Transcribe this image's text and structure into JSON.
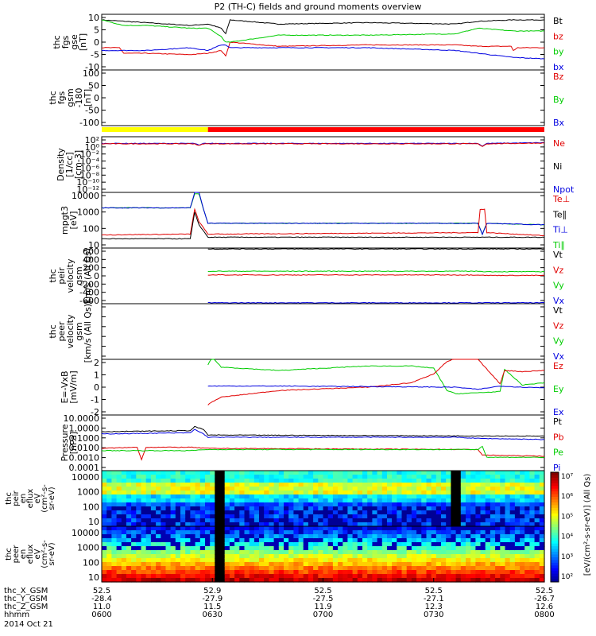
{
  "title": "P2 (TH-C) fields and ground moments overview",
  "chart_data": {
    "type": "line",
    "panels": [
      {
        "id": "fgs",
        "ylabel": [
          "thc",
          "fgs",
          "gse",
          "[nT]"
        ],
        "ticks": [
          "10",
          "5",
          "0",
          "-5",
          "-10"
        ],
        "ylim": [
          -10,
          10
        ],
        "legend": [
          {
            "name": "Bt",
            "color": "#000000"
          },
          {
            "name": "bz",
            "color": "#e00000"
          },
          {
            "name": "by",
            "color": "#00cc00"
          },
          {
            "name": "bx",
            "color": "#0000e0"
          }
        ],
        "series": [
          {
            "color": "#000000",
            "x": [
              0,
              10,
              20,
              24,
              27,
              28,
              29,
              40,
              60,
              80,
              85,
              93,
              100
            ],
            "y": [
              8,
              7,
              6,
              6.5,
              5,
              3,
              8,
              6.5,
              7,
              6.5,
              7.5,
              8,
              8
            ]
          },
          {
            "color": "#e00000",
            "x": [
              0,
              4,
              5,
              10,
              20,
              24,
              27,
              28,
              29,
              40,
              60,
              80,
              85,
              92.5,
              93,
              94,
              100
            ],
            "y": [
              -2,
              -2,
              -4,
              -4,
              -4.5,
              -4,
              -3,
              -5,
              0,
              -1.5,
              -1,
              -1,
              -1.5,
              -1.5,
              -3,
              -2,
              -2
            ]
          },
          {
            "color": "#00cc00",
            "x": [
              0,
              5,
              10,
              20,
              24,
              27,
              28,
              29,
              40,
              60,
              80,
              85,
              93,
              100
            ],
            "y": [
              8,
              6,
              6,
              5,
              5,
              2,
              0,
              0,
              2.5,
              2.5,
              3,
              5,
              4,
              4
            ]
          },
          {
            "color": "#0000e0",
            "x": [
              0,
              10,
              20,
              24,
              27,
              28,
              29,
              40,
              60,
              80,
              85,
              93,
              100
            ],
            "y": [
              -3,
              -3,
              -2,
              -3,
              -1,
              -1,
              -2,
              -2,
              -2,
              -3,
              -4,
              -5.5,
              -6
            ]
          }
        ]
      },
      {
        "id": "fgs2",
        "ylabel": [
          "thc",
          "fgs",
          "gsm",
          "-180",
          "[nT]"
        ],
        "ticks": [
          "100",
          "50",
          "0",
          "-50",
          "-100"
        ],
        "ylim": [
          -120,
          120
        ],
        "legend": [
          {
            "name": "Bz",
            "color": "#e00000"
          },
          {
            "name": "By",
            "color": "#00cc00"
          },
          {
            "name": "Bx",
            "color": "#0000e0"
          }
        ],
        "series": []
      },
      {
        "id": "density",
        "ylabel": [
          "Density",
          "[1/cc]",
          "[cm-3]"
        ],
        "ticks": [
          "10²",
          "10⁰",
          "10⁻²",
          "10⁻⁴",
          "10⁻⁶",
          "10⁻⁸",
          "10⁻¹⁰",
          "10⁻¹²"
        ],
        "ylim": [
          -13,
          2
        ],
        "legend": [
          {
            "name": "Ne",
            "color": "#e00000"
          },
          {
            "name": "Ni",
            "color": "#000000"
          },
          {
            "name": "Npot",
            "color": "#0000e0"
          }
        ],
        "series": [
          {
            "color": "#0000e0",
            "x": [
              0,
              21,
              22,
              23,
              85,
              86,
              87,
              100
            ],
            "y": [
              0.2,
              0.2,
              -0.3,
              0.2,
              0.2,
              -0.5,
              0.2,
              0.4
            ]
          },
          {
            "color": "#e00000",
            "x": [
              0,
              21,
              22,
              23,
              85,
              86,
              87,
              100
            ],
            "y": [
              0.1,
              0.1,
              -0.4,
              0.1,
              0.1,
              -0.6,
              0.1,
              0.3
            ]
          }
        ]
      },
      {
        "id": "temp",
        "ylabel": [
          "mpgt3",
          "[eV]"
        ],
        "ticks": [
          "10000",
          "1000",
          "100",
          "10"
        ],
        "ylim": [
          0.5,
          4.1
        ],
        "legend": [
          {
            "name": "Te⊥",
            "color": "#e00000"
          },
          {
            "name": "Te∥",
            "color": "#000000"
          },
          {
            "name": "Ti⊥",
            "color": "#0000e0"
          },
          {
            "name": "Ti∥",
            "color": "#00cc00"
          }
        ],
        "series": [
          {
            "color": "#00cc00",
            "x": [
              0,
              20,
              21,
              22,
              23,
              24,
              80,
              85,
              86,
              87,
              100
            ],
            "y": [
              3.1,
              3.1,
              4,
              4,
              3,
              2.1,
              2.1,
              2.1,
              1.4,
              2.1,
              2
            ]
          },
          {
            "color": "#0000e0",
            "x": [
              0,
              20,
              21,
              22,
              23,
              24,
              80,
              85,
              86,
              87,
              100
            ],
            "y": [
              3.1,
              3.1,
              4.1,
              4.1,
              3,
              2.1,
              2.1,
              2.1,
              1.4,
              2.1,
              2
            ]
          },
          {
            "color": "#e00000",
            "x": [
              0,
              20,
              21,
              22,
              24,
              85,
              85.5,
              86.5,
              87,
              100
            ],
            "y": [
              1.35,
              1.4,
              3,
              2.2,
              1.4,
              1.5,
              3,
              3,
              1.5,
              1.3
            ]
          },
          {
            "color": "#000000",
            "x": [
              0,
              20,
              21,
              22,
              24,
              100
            ],
            "y": [
              1.1,
              1.1,
              2.8,
              2,
              1.2,
              1.2
            ]
          }
        ]
      },
      {
        "id": "pvel",
        "ylabel": [
          "thc",
          "peir",
          "velocity",
          "gsm",
          "km/s (All Qs)"
        ],
        "ticks": [
          "600",
          "400",
          "200",
          "0",
          "-200",
          "-400",
          "-600"
        ],
        "ylim": [
          -600,
          600
        ],
        "legend": [
          {
            "name": "Vt",
            "color": "#000000"
          },
          {
            "name": "Vz",
            "color": "#e00000"
          },
          {
            "name": "Vy",
            "color": "#00cc00"
          },
          {
            "name": "Vx",
            "color": "#0000e0"
          }
        ],
        "series": [
          {
            "color": "#000000",
            "x": [
              24,
              100
            ],
            "y": [
              580,
              580
            ]
          },
          {
            "color": "#00cc00",
            "x": [
              24,
              85,
              87,
              100
            ],
            "y": [
              100,
              100,
              90,
              90
            ]
          },
          {
            "color": "#e00000",
            "x": [
              24,
              85,
              87,
              100
            ],
            "y": [
              20,
              20,
              10,
              10
            ]
          },
          {
            "color": "#0000e0",
            "x": [
              24,
              100
            ],
            "y": [
              -580,
              -580
            ]
          }
        ]
      },
      {
        "id": "evel",
        "ylabel": [
          "thc",
          "peer",
          "velocity",
          "gsm",
          "[km/s (All Qs)]"
        ],
        "ticks": [
          "",
          "",
          "",
          "",
          "",
          ""
        ],
        "ylim": [
          0,
          1
        ],
        "legend": [
          {
            "name": "Vt",
            "color": "#000000"
          },
          {
            "name": "Vz",
            "color": "#e00000"
          },
          {
            "name": "Vy",
            "color": "#00cc00"
          },
          {
            "name": "Vx",
            "color": "#0000e0"
          }
        ],
        "series": []
      },
      {
        "id": "efield",
        "ylabel": [
          "E=-VxB",
          "[mV/m]"
        ],
        "ticks": [
          "2",
          "1",
          "0",
          "-1",
          "-2"
        ],
        "ylim": [
          -2.5,
          2.5
        ],
        "legend": [
          {
            "name": "Ez",
            "color": "#e00000"
          },
          {
            "name": "Ey",
            "color": "#00cc00"
          },
          {
            "name": "Ex",
            "color": "#0000e0"
          }
        ],
        "series": [
          {
            "color": "#00cc00",
            "x": [
              24,
              25,
              27,
              40,
              60,
              70,
              75,
              78,
              80,
              85,
              90,
              91,
              95,
              100
            ],
            "y": [
              2,
              2.7,
              1.8,
              1.5,
              1.9,
              1.9,
              1.7,
              -0.3,
              -0.6,
              -0.5,
              -0.4,
              1.6,
              0.2,
              0.4
            ]
          },
          {
            "color": "#e00000",
            "x": [
              24,
              25,
              27,
              40,
              60,
              70,
              75,
              78,
              80,
              85,
              90,
              91,
              95,
              100
            ],
            "y": [
              -1.6,
              -1.3,
              -0.9,
              -0.3,
              0,
              0.4,
              1.2,
              2.3,
              2.6,
              2.5,
              0.3,
              1.5,
              1.4,
              1.5
            ]
          },
          {
            "color": "#0000e0",
            "x": [
              24,
              40,
              60,
              80,
              85,
              90,
              95,
              100
            ],
            "y": [
              0.1,
              0.1,
              0.05,
              0,
              -0.2,
              0.1,
              0,
              -0.05
            ]
          }
        ]
      },
      {
        "id": "pressure",
        "ylabel": [
          "Pressure",
          "[nPa]"
        ],
        "ticks": [
          "10.0000",
          "1.0000",
          "0.1000",
          "0.0100",
          "0.0010",
          "0.0001"
        ],
        "ylim": [
          -4,
          1
        ],
        "legend": [
          {
            "name": "Pt",
            "color": "#000000"
          },
          {
            "name": "Pb",
            "color": "#e00000"
          },
          {
            "name": "Pe",
            "color": "#00cc00"
          },
          {
            "name": "Pi",
            "color": "#0000e0"
          }
        ],
        "series": [
          {
            "color": "#000000",
            "x": [
              0,
              20,
              21,
              23,
              24,
              100
            ],
            "y": [
              -0.5,
              -0.4,
              -0.05,
              -0.3,
              -0.8,
              -0.9
            ]
          },
          {
            "color": "#0000e0",
            "x": [
              0,
              20,
              21,
              23,
              24,
              80,
              85,
              100
            ],
            "y": [
              -0.7,
              -0.6,
              -0.3,
              -0.7,
              -1,
              -1,
              -1.1,
              -1.2
            ]
          },
          {
            "color": "#e00000",
            "x": [
              0,
              8,
              9,
              10,
              20,
              24,
              85,
              86,
              100
            ],
            "y": [
              -2,
              -1.9,
              -3,
              -1.9,
              -1.9,
              -2.0,
              -2.1,
              -2.6,
              -2.7
            ]
          },
          {
            "color": "#00cc00",
            "x": [
              0,
              20,
              24,
              60,
              85,
              86,
              87,
              100
            ],
            "y": [
              -2.2,
              -2.2,
              -2.1,
              -2.1,
              -2.1,
              -1.8,
              -2.8,
              -2.8
            ]
          }
        ]
      }
    ],
    "spectrogram": {
      "panels": [
        {
          "ylabel": [
            "thc",
            "peir",
            "en",
            "eflux",
            "eV",
            "(cm²-s-",
            "sr-eV)"
          ],
          "ticks": [
            "10000",
            "1000",
            "100",
            "10"
          ]
        },
        {
          "ylabel": [
            "thc",
            "peer",
            "en",
            "eflux",
            "eV",
            "(cm²-s-",
            "sr-eV)"
          ],
          "ticks": [
            "10000",
            "1000",
            "100",
            "10"
          ]
        }
      ],
      "colorbar_ticks": [
        "10⁷",
        "10⁶",
        "10⁵",
        "10⁴",
        "10³",
        "10²"
      ],
      "colorbar_label": "[eV/(cm²-s-sr-eV)] (All Qs)"
    },
    "mode_bar": {
      "colors": [
        "#ffff00",
        "#ff0000"
      ],
      "split": 0.24
    },
    "x_axis": {
      "rows": [
        {
          "label": "thc_X_GSM",
          "values": [
            "52.5",
            "52.9",
            "52.5",
            "52.5",
            "52.5"
          ]
        },
        {
          "label": "thc_Y_GSM",
          "values": [
            "-28.4",
            "-27.9",
            "-27.5",
            "-27.1",
            "-26.7"
          ]
        },
        {
          "label": "thc_Z_GSM",
          "values": [
            "11.0",
            "11.5",
            "11.9",
            "12.3",
            "12.6"
          ]
        },
        {
          "label": "hhmm",
          "values": [
            "0600",
            "0630",
            "0700",
            "0730",
            "0800"
          ]
        }
      ],
      "date": "2014 Oct 21"
    }
  }
}
